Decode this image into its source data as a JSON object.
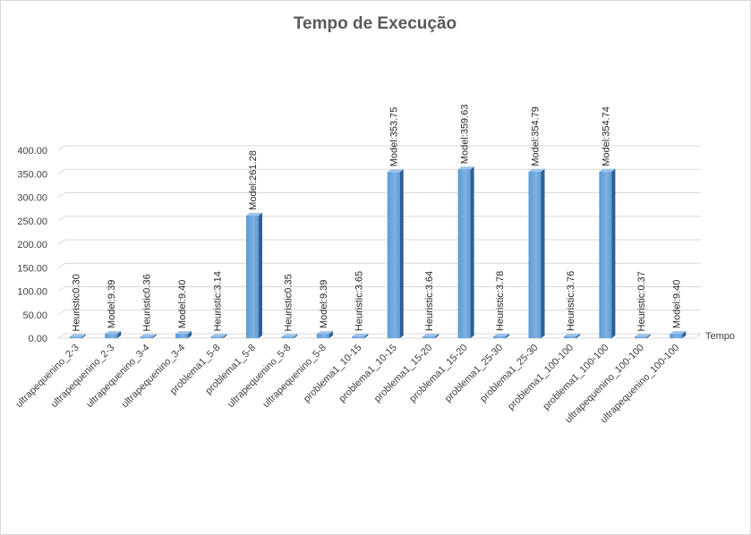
{
  "chart_data": {
    "type": "bar",
    "title": "Tempo de Execução",
    "xlabel": "",
    "ylabel": "",
    "ylim": [
      0,
      400
    ],
    "yticks": [
      "0.00",
      "50.00",
      "100.00",
      "150.00",
      "200.00",
      "250.00",
      "300.00",
      "350.00",
      "400.00"
    ],
    "grid": true,
    "legend_position": "right",
    "categories": [
      "ultrapequenino_2-3",
      "ultrapequenino_2-3",
      "ultrapequenino_3-4",
      "ultrapequenino_3-4",
      "problema1_5-8",
      "problema1_5-8",
      "ultrapequenino_5-8",
      "ultrapequenino_5-8",
      "problema1_10-15",
      "problema1_10-15",
      "problema1_15-20",
      "problema1_15-20",
      "problema1_25-30",
      "problema1_25-30",
      "problema1_100-100",
      "problema1_100-100",
      "ultrapequenino_100-100",
      "ultrapequenino_100-100"
    ],
    "series": [
      {
        "name": "Tempo",
        "values": [
          0.3,
          9.39,
          0.36,
          9.4,
          3.14,
          261.28,
          0.35,
          9.39,
          3.65,
          353.75,
          3.64,
          359.63,
          3.78,
          354.79,
          3.76,
          354.74,
          0.37,
          9.4
        ],
        "labels": [
          "Heuristic0.30",
          "Model:9.39",
          "Heuristic0.36",
          "Model:9.40",
          "Heuristic:3.14",
          "Model:261.28",
          "Heuristic0.35",
          "Model:9.39",
          "Heuristic:3.65",
          "Model:353.75",
          "Heuristic:3.64",
          "Model:359.63",
          "Heuristic:3.78",
          "Model:354.79",
          "Heuristic:3.76",
          "Model:354.74",
          "Heuristic:0.37",
          "Model:9.40"
        ]
      }
    ],
    "colors": {
      "bar_front": "#5b9bd5",
      "bar_front_light": "#7fb1e3",
      "bar_side": "#2e5f93",
      "bar_top": "#9cc3ea"
    }
  }
}
